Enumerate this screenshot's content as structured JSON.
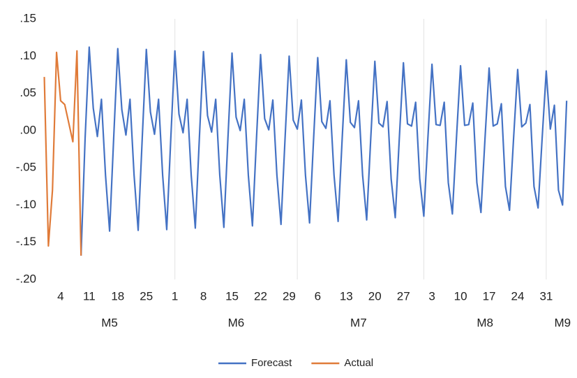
{
  "chart_data": {
    "type": "line",
    "x": [
      -1,
      0,
      1,
      2,
      3,
      4,
      5,
      6,
      7,
      8,
      9,
      10,
      11,
      12,
      13,
      14,
      15,
      16,
      17,
      18,
      19,
      20,
      21,
      22,
      23,
      24,
      25,
      26,
      27,
      28,
      29,
      30,
      31,
      32,
      33,
      34,
      35,
      36,
      37,
      38,
      39,
      40,
      41,
      42,
      43,
      44,
      45,
      46,
      47,
      48,
      49,
      50,
      51,
      52,
      53,
      54,
      55,
      56,
      57,
      58,
      59,
      60,
      61,
      62,
      63,
      64,
      65,
      66,
      67,
      68,
      69,
      70,
      71,
      72,
      73,
      74,
      75,
      76,
      77,
      78,
      79,
      80,
      81,
      82,
      83,
      84,
      85,
      86,
      87,
      88,
      89,
      90,
      91,
      92,
      93,
      94,
      95,
      96,
      97,
      98,
      99,
      100,
      101,
      102,
      103,
      104,
      105,
      106,
      107,
      108,
      109,
      110,
      111,
      112,
      113,
      114,
      115,
      116,
      117,
      118,
      119,
      120,
      121,
      122,
      123,
      124,
      125,
      126,
      127
    ],
    "series": [
      {
        "name": "Forecast",
        "color": "#4472c4",
        "values": [
          null,
          null,
          null,
          null,
          null,
          null,
          null,
          null,
          null,
          -0.168,
          -0.01,
          0.112,
          0.03,
          -0.008,
          0.042,
          -0.06,
          -0.135,
          -0.01,
          0.11,
          0.028,
          -0.006,
          0.042,
          -0.06,
          -0.134,
          -0.01,
          0.109,
          0.025,
          -0.005,
          0.042,
          -0.06,
          -0.133,
          -0.01,
          0.107,
          0.022,
          -0.003,
          0.042,
          -0.06,
          -0.131,
          -0.01,
          0.106,
          0.02,
          -0.002,
          0.042,
          -0.06,
          -0.13,
          -0.01,
          0.104,
          0.018,
          0,
          0.042,
          -0.06,
          -0.128,
          -0.01,
          0.102,
          0.016,
          0.001,
          0.041,
          -0.06,
          -0.126,
          -0.01,
          0.1,
          0.014,
          0.002,
          0.041,
          -0.06,
          -0.124,
          -0.01,
          0.098,
          0.012,
          0.003,
          0.04,
          -0.06,
          -0.122,
          -0.01,
          0.095,
          0.011,
          0.004,
          0.04,
          -0.06,
          -0.12,
          -0.01,
          0.093,
          0.01,
          0.005,
          0.039,
          -0.065,
          -0.117,
          -0.01,
          0.091,
          0.009,
          0.006,
          0.038,
          -0.065,
          -0.115,
          -0.01,
          0.089,
          0.008,
          0.007,
          0.038,
          -0.07,
          -0.112,
          -0.01,
          0.087,
          0.007,
          0.008,
          0.037,
          -0.07,
          -0.11,
          -0.01,
          0.084,
          0.006,
          0.009,
          0.036,
          -0.075,
          -0.107,
          -0.01,
          0.082,
          0.005,
          0.01,
          0.035,
          -0.075,
          -0.104,
          -0.01,
          0.08,
          0.002,
          0.034,
          -0.08,
          -0.1,
          0.04
        ]
      },
      {
        "name": "Actual",
        "color": "#e07b39",
        "values": [
          0.072,
          -0.155,
          -0.08,
          0.105,
          0.04,
          0.035,
          0.01,
          -0.015,
          0.107,
          -0.168,
          null,
          null,
          null,
          null,
          null,
          null,
          null,
          null,
          null,
          null,
          null,
          null,
          null,
          null,
          null,
          null,
          null,
          null,
          null,
          null,
          null,
          null,
          null,
          null,
          null,
          null,
          null,
          null,
          null,
          null,
          null,
          null,
          null,
          null,
          null,
          null,
          null,
          null,
          null,
          null,
          null,
          null,
          null,
          null,
          null,
          null,
          null,
          null,
          null,
          null,
          null,
          null,
          null,
          null,
          null,
          null,
          null,
          null,
          null,
          null,
          null,
          null,
          null,
          null,
          null,
          null,
          null,
          null,
          null,
          null,
          null,
          null,
          null,
          null,
          null,
          null,
          null,
          null,
          null,
          null,
          null,
          null,
          null,
          null,
          null,
          null,
          null,
          null,
          null,
          null,
          null,
          null,
          null,
          null,
          null,
          null,
          null,
          null,
          null,
          null,
          null,
          null,
          null,
          null,
          null,
          null,
          null,
          null,
          null,
          null,
          null,
          null,
          null,
          null,
          null,
          null,
          null,
          null,
          null
        ]
      }
    ],
    "xlim": [
      -1.6,
      128
    ],
    "ylim": [
      -0.2,
      0.15
    ],
    "yticks": [
      {
        "value": 0.15,
        "label": ".15"
      },
      {
        "value": 0.1,
        "label": ".10"
      },
      {
        "value": 0.05,
        "label": ".05"
      },
      {
        "value": 0,
        "label": ".00"
      },
      {
        "value": -0.05,
        "label": "-.05"
      },
      {
        "value": -0.1,
        "label": "-.10"
      },
      {
        "value": -0.15,
        "label": "-.15"
      },
      {
        "value": -0.2,
        "label": "-.20"
      }
    ],
    "xticks": [
      {
        "value": 3,
        "label": "4"
      },
      {
        "value": 10,
        "label": "11"
      },
      {
        "value": 17,
        "label": "18"
      },
      {
        "value": 24,
        "label": "25"
      },
      {
        "value": 31,
        "label": "1"
      },
      {
        "value": 38,
        "label": "8"
      },
      {
        "value": 45,
        "label": "15"
      },
      {
        "value": 52,
        "label": "22"
      },
      {
        "value": 59,
        "label": "29"
      },
      {
        "value": 66,
        "label": "6"
      },
      {
        "value": 73,
        "label": "13"
      },
      {
        "value": 80,
        "label": "20"
      },
      {
        "value": 87,
        "label": "27"
      },
      {
        "value": 94,
        "label": "3"
      },
      {
        "value": 101,
        "label": "10"
      },
      {
        "value": 108,
        "label": "17"
      },
      {
        "value": 115,
        "label": "24"
      },
      {
        "value": 122,
        "label": "31"
      }
    ],
    "xgroups": [
      {
        "value": 15,
        "label": "M5"
      },
      {
        "value": 46,
        "label": "M6"
      },
      {
        "value": 76,
        "label": "M7"
      },
      {
        "value": 107,
        "label": "M8"
      },
      {
        "value": 126,
        "label": "M9"
      }
    ],
    "xgrid": [
      31,
      61,
      92,
      122
    ],
    "legend": "bottom"
  }
}
